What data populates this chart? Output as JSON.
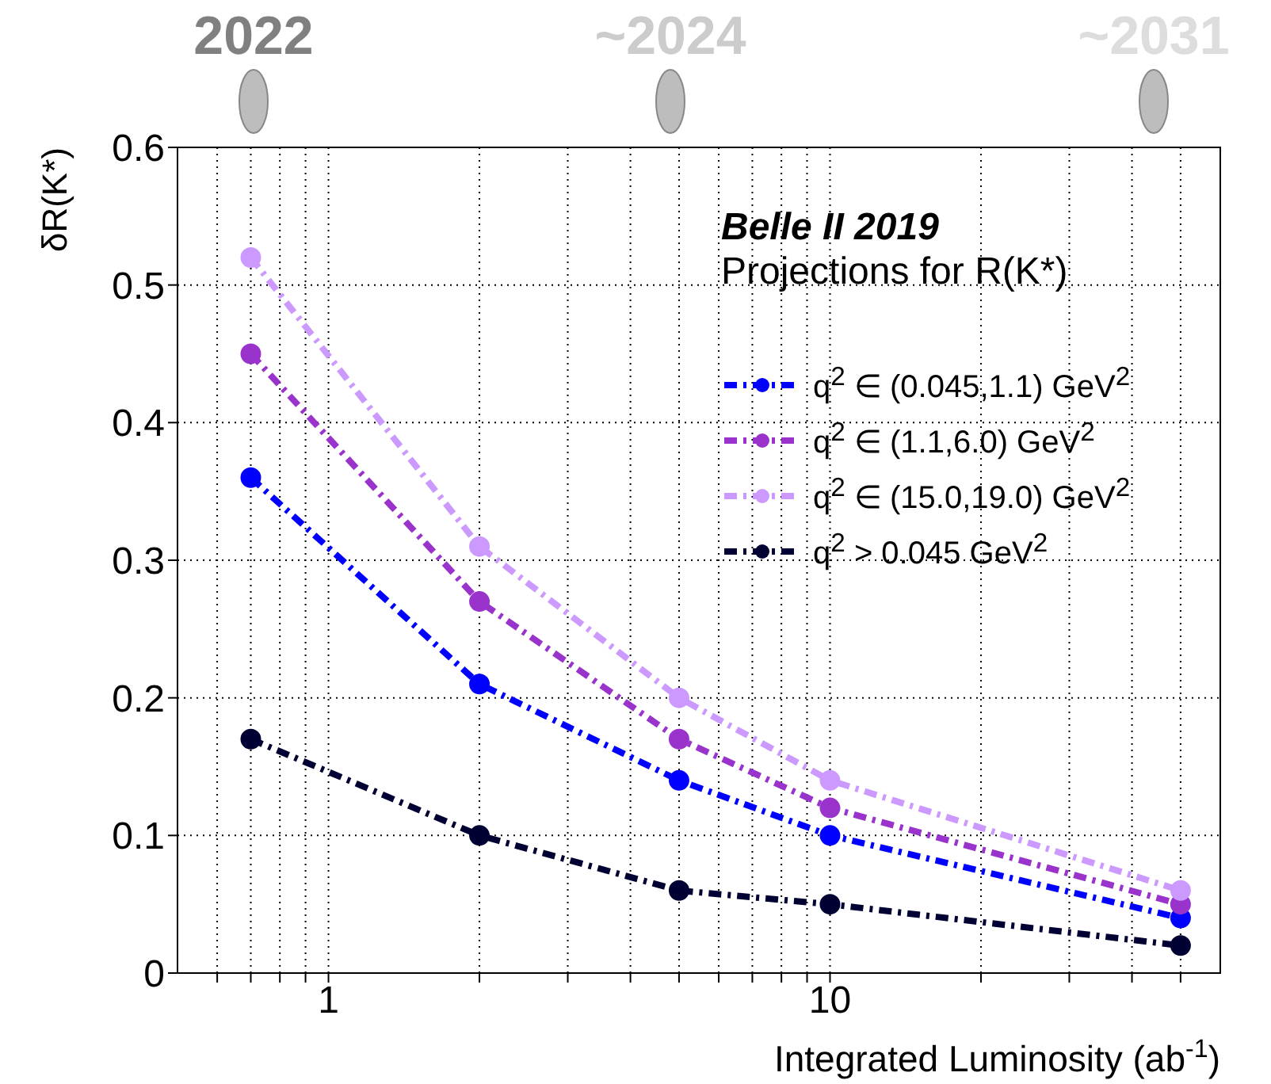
{
  "chart_data": {
    "type": "line",
    "title": "Belle II 2019",
    "subtitle": "Projections for R(K*)",
    "xlabel": "Integrated Luminosity (ab$^{-1}$)",
    "ylabel": "δR(K*)",
    "log": "x",
    "xlim": [
      0.5,
      60
    ],
    "ylim": [
      0,
      0.6
    ],
    "xticks": [
      {
        "value": 0.6,
        "label": null
      },
      {
        "value": 0.7,
        "label": null
      },
      {
        "value": 0.8,
        "label": null
      },
      {
        "value": 0.9,
        "label": null
      },
      1,
      {
        "value": 2,
        "label": null
      },
      {
        "value": 3,
        "label": null
      },
      {
        "value": 4,
        "label": null
      },
      {
        "value": 5,
        "label": null
      },
      {
        "value": 6,
        "label": null
      },
      {
        "value": 7,
        "label": null
      },
      {
        "value": 8,
        "label": null
      },
      {
        "value": 9,
        "label": null
      },
      10,
      {
        "value": 20,
        "label": null
      },
      {
        "value": 30,
        "label": null
      },
      {
        "value": 40,
        "label": null
      },
      {
        "value": 50,
        "label": null
      }
    ],
    "yticks": [
      0,
      0.1,
      0.2,
      0.3,
      0.4,
      0.5,
      0.6
    ],
    "grid": true,
    "legend": "top right",
    "marker": "circle",
    "line_style": "dashed",
    "x": [
      0.7,
      2,
      5,
      10,
      50
    ],
    "series": [
      {
        "name": "q$^{2}$ ∈ (0.045,1.1) GeV$^{2}$",
        "color": "#0000ff",
        "values": [
          0.36,
          0.21,
          0.14,
          0.1,
          0.04
        ]
      },
      {
        "name": "q$^{2}$ ∈ (1.1,6.0) GeV$^{2}$",
        "color": "#9933cc",
        "values": [
          0.45,
          0.27,
          0.17,
          0.12,
          0.05
        ]
      },
      {
        "name": "q$^{2}$ ∈ (15.0,19.0) GeV$^{2}$",
        "color": "#cc99ff",
        "values": [
          0.52,
          0.31,
          0.2,
          0.14,
          0.06
        ]
      },
      {
        "name": "q$^{2}$ > 0.045 GeV$^{2}$",
        "color": "#000033",
        "values": [
          0.17,
          0.1,
          0.06,
          0.05,
          0.02
        ]
      }
    ],
    "annotations": [
      "2022",
      "~2024",
      "~2031"
    ]
  }
}
